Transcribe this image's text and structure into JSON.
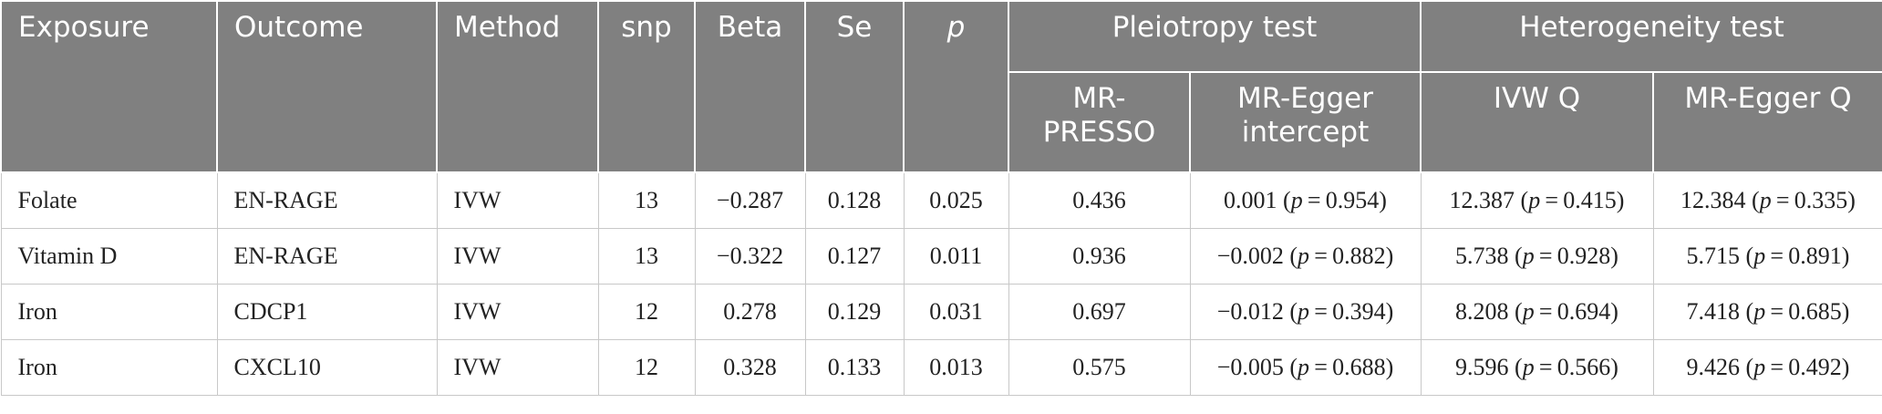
{
  "table": {
    "header": [
      "Exposure",
      "Outcome",
      "Method",
      "snp",
      "Beta",
      "Se",
      "p",
      "Pleiotropy test",
      "Heterogeneity test"
    ],
    "subheader": [
      "MR-PRESSO",
      "MR-Egger intercept",
      "IVW Q",
      "MR-Egger Q"
    ],
    "rows": [
      [
        "Folate",
        "EN-RAGE",
        "IVW",
        "13",
        "−0.287",
        "0.128",
        "0.025",
        "0.436",
        [
          "0.001 (",
          "p",
          " = 0.954)"
        ],
        [
          "12.387 (",
          "p",
          " = 0.415)"
        ],
        [
          "12.384 (",
          "p",
          " = 0.335)"
        ]
      ],
      [
        "Vitamin D",
        "EN-RAGE",
        "IVW",
        "13",
        "−0.322",
        "0.127",
        "0.011",
        "0.936",
        [
          "−0.002 (",
          "p",
          " = 0.882)"
        ],
        [
          "5.738 (",
          "p",
          " = 0.928)"
        ],
        [
          "5.715 (",
          "p",
          " = 0.891)"
        ]
      ],
      [
        "Iron",
        "CDCP1",
        "IVW",
        "12",
        "0.278",
        "0.129",
        "0.031",
        "0.697",
        [
          "−0.012 (",
          "p",
          " = 0.394)"
        ],
        [
          "8.208 (",
          "p",
          " = 0.694)"
        ],
        [
          "7.418 (",
          "p",
          " = 0.685)"
        ]
      ],
      [
        "Iron",
        "CXCL10",
        "IVW",
        "12",
        "0.328",
        "0.133",
        "0.013",
        "0.575",
        [
          "−0.005 (",
          "p",
          " = 0.688)"
        ],
        [
          "9.596 (",
          "p",
          " = 0.566)"
        ],
        [
          "9.426 (",
          "p",
          " = 0.492)"
        ]
      ]
    ]
  }
}
